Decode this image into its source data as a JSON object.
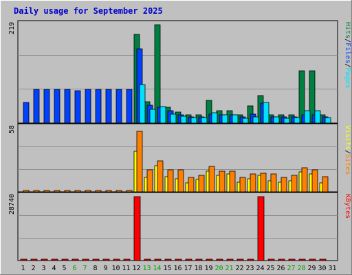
{
  "chart_data": {
    "type": "bar",
    "title": "Daily usage for September 2025",
    "colors": {
      "background": "#c0c0c0",
      "title": "#0000cc",
      "hits": "#008040",
      "files": "#0040ff",
      "pages": "#00e0ff",
      "visits": "#ffff00",
      "sites": "#ff8000",
      "kbytes": "#ff0000",
      "weekend_label": "#00a000",
      "weekday_label": "#000000"
    },
    "x_labels": [
      "1",
      "2",
      "3",
      "4",
      "5",
      "6",
      "7",
      "8",
      "9",
      "10",
      "11",
      "12",
      "13",
      "14",
      "15",
      "16",
      "17",
      "18",
      "19",
      "20",
      "21",
      "22",
      "23",
      "24",
      "25",
      "26",
      "27",
      "28",
      "29",
      "30",
      "31"
    ],
    "weekend_days": [
      6,
      7,
      13,
      14,
      20,
      21,
      27,
      28
    ],
    "panels": [
      {
        "id": "hits_files_pages",
        "max_label": "219",
        "ylim": [
          0,
          219
        ],
        "legend": [
          "Pages",
          "/",
          "Files",
          "/",
          "Hits"
        ],
        "series": [
          {
            "name": "Hits",
            "values": [
              0,
              0,
              0,
              0,
              0,
              0,
              0,
              0,
              0,
              0,
              0,
              197,
              47,
              219,
              35,
              24,
              18,
              18,
              51,
              28,
              28,
              18,
              38,
              61,
              18,
              18,
              18,
              117,
              117,
              18,
              0
            ]
          },
          {
            "name": "Files",
            "values": [
              46,
              75,
              75,
              75,
              75,
              72,
              75,
              75,
              75,
              75,
              75,
              165,
              40,
              35,
              28,
              18,
              14,
              14,
              20,
              18,
              18,
              14,
              20,
              45,
              14,
              14,
              14,
              18,
              18,
              14,
              0
            ]
          },
          {
            "name": "Pages",
            "values": [
              0,
              0,
              0,
              0,
              0,
              0,
              0,
              0,
              0,
              0,
              0,
              85,
              30,
              37,
              20,
              16,
              12,
              12,
              23,
              18,
              18,
              10,
              14,
              46,
              14,
              10,
              12,
              28,
              28,
              12,
              0
            ]
          }
        ]
      },
      {
        "id": "visits_sites",
        "max_label": "58",
        "ylim": [
          0,
          58
        ],
        "legend": [
          "Sites",
          "/",
          "Visits"
        ],
        "series": [
          {
            "name": "Visits",
            "values": [
              0,
              0,
              0,
              0,
              0,
              0,
              0,
              0,
              0,
              0,
              0,
              37,
              13,
              24,
              14,
              12,
              8,
              11,
              19,
              15,
              16,
              9,
              12,
              15,
              10,
              9,
              10,
              18,
              16,
              8,
              0
            ]
          },
          {
            "name": "Sites",
            "values": [
              1,
              1,
              1,
              1,
              1,
              1,
              1,
              1,
              1,
              1,
              1,
              55,
              20,
              28,
              20,
              20,
              13,
              15,
              23,
              19,
              19,
              13,
              16,
              17,
              16,
              13,
              15,
              22,
              20,
              14,
              0
            ]
          }
        ]
      },
      {
        "id": "kbytes",
        "max_label": "28740",
        "ylim": [
          0,
          28740
        ],
        "legend": [
          "KBytes"
        ],
        "series": [
          {
            "name": "KBytes",
            "values": [
              1,
              1,
              1,
              1,
              1,
              1,
              1,
              1,
              1,
              1,
              1,
              28740,
              1,
              1,
              1,
              1,
              1,
              1,
              1,
              1,
              1,
              1,
              1,
              28740,
              1,
              1,
              1,
              1,
              1,
              1,
              0
            ]
          }
        ]
      }
    ]
  }
}
